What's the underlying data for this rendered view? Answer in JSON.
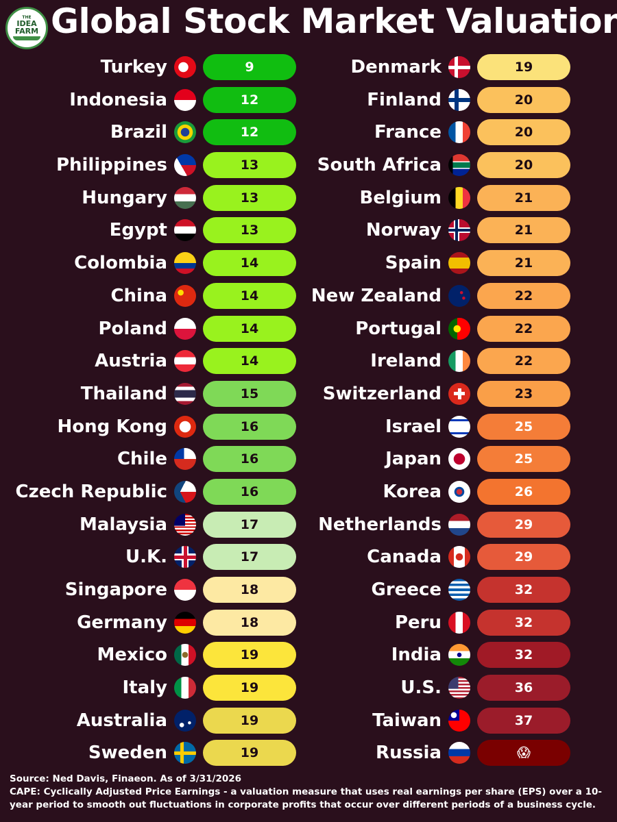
{
  "logo": {
    "line1": "THE",
    "line2": "IDEA",
    "line3": "FARM"
  },
  "title": "Global Stock Market Valuations",
  "chart_data": {
    "type": "table",
    "title": "Global Stock Market Valuations",
    "columns": [
      [
        {
          "country": "Turkey",
          "value": 9,
          "color": "#10be10",
          "flag": "turkey-flag-icon"
        },
        {
          "country": "Indonesia",
          "value": 12,
          "color": "#11bd11",
          "flag": "indonesia-flag-icon"
        },
        {
          "country": "Brazil",
          "value": 12,
          "color": "#11bd11",
          "flag": "brazil-flag-icon"
        },
        {
          "country": "Philippines",
          "value": 13,
          "color": "#99f21e",
          "flag": "philippines-flag-icon"
        },
        {
          "country": "Hungary",
          "value": 13,
          "color": "#99f21e",
          "flag": "hungary-flag-icon"
        },
        {
          "country": "Egypt",
          "value": 13,
          "color": "#99f21e",
          "flag": "egypt-flag-icon"
        },
        {
          "country": "Colombia",
          "value": 14,
          "color": "#99f21e",
          "flag": "colombia-flag-icon"
        },
        {
          "country": "China",
          "value": 14,
          "color": "#99f21e",
          "flag": "china-flag-icon"
        },
        {
          "country": "Poland",
          "value": 14,
          "color": "#99f21e",
          "flag": "poland-flag-icon"
        },
        {
          "country": "Austria",
          "value": 14,
          "color": "#99f21e",
          "flag": "austria-flag-icon"
        },
        {
          "country": "Thailand",
          "value": 15,
          "color": "#7fd957",
          "flag": "thailand-flag-icon"
        },
        {
          "country": "Hong Kong",
          "value": 16,
          "color": "#7fd957",
          "flag": "hong-kong-flag-icon"
        },
        {
          "country": "Chile",
          "value": 16,
          "color": "#7fd957",
          "flag": "chile-flag-icon"
        },
        {
          "country": "Czech Republic",
          "value": 16,
          "color": "#7fd957",
          "flag": "czech-republic-flag-icon"
        },
        {
          "country": "Malaysia",
          "value": 17,
          "color": "#c8ecb4",
          "flag": "malaysia-flag-icon"
        },
        {
          "country": "U.K.",
          "value": 17,
          "color": "#c8ecb4",
          "flag": "uk-flag-icon"
        },
        {
          "country": "Singapore",
          "value": 18,
          "color": "#fde9a3",
          "flag": "singapore-flag-icon"
        },
        {
          "country": "Germany",
          "value": 18,
          "color": "#fde9a3",
          "flag": "germany-flag-icon"
        },
        {
          "country": "Mexico",
          "value": 19,
          "color": "#fce53b",
          "flag": "mexico-flag-icon"
        },
        {
          "country": "Italy",
          "value": 19,
          "color": "#fce53b",
          "flag": "italy-flag-icon"
        },
        {
          "country": "Australia",
          "value": 19,
          "color": "#ebd84e",
          "flag": "australia-flag-icon"
        },
        {
          "country": "Sweden",
          "value": 19,
          "color": "#ebd84e",
          "flag": "sweden-flag-icon"
        }
      ],
      [
        {
          "country": "Denmark",
          "value": 19,
          "color": "#fbe27a",
          "flag": "denmark-flag-icon"
        },
        {
          "country": "Finland",
          "value": 20,
          "color": "#fbc15c",
          "flag": "finland-flag-icon"
        },
        {
          "country": "France",
          "value": 20,
          "color": "#fbc15c",
          "flag": "france-flag-icon"
        },
        {
          "country": "South Africa",
          "value": 20,
          "color": "#fbc15c",
          "flag": "south-africa-flag-icon"
        },
        {
          "country": "Belgium",
          "value": 21,
          "color": "#fbb256",
          "flag": "belgium-flag-icon"
        },
        {
          "country": "Norway",
          "value": 21,
          "color": "#fbb256",
          "flag": "norway-flag-icon"
        },
        {
          "country": "Spain",
          "value": 21,
          "color": "#fbb256",
          "flag": "spain-flag-icon"
        },
        {
          "country": "New Zealand",
          "value": 22,
          "color": "#fba64e",
          "flag": "new-zealand-flag-icon"
        },
        {
          "country": "Portugal",
          "value": 22,
          "color": "#fba64e",
          "flag": "portugal-flag-icon"
        },
        {
          "country": "Ireland",
          "value": 22,
          "color": "#fba64e",
          "flag": "ireland-flag-icon"
        },
        {
          "country": "Switzerland",
          "value": 23,
          "color": "#fa9f48",
          "flag": "switzerland-flag-icon"
        },
        {
          "country": "Israel",
          "value": 25,
          "color": "#f47d38",
          "flag": "israel-flag-icon"
        },
        {
          "country": "Japan",
          "value": 25,
          "color": "#f47d38",
          "flag": "japan-flag-icon"
        },
        {
          "country": "Korea",
          "value": 26,
          "color": "#f3742f",
          "flag": "korea-flag-icon"
        },
        {
          "country": "Netherlands",
          "value": 29,
          "color": "#e65a3a",
          "flag": "netherlands-flag-icon"
        },
        {
          "country": "Canada",
          "value": 29,
          "color": "#e65a3a",
          "flag": "canada-flag-icon"
        },
        {
          "country": "Greece",
          "value": 32,
          "color": "#c5332e",
          "flag": "greece-flag-icon"
        },
        {
          "country": "Peru",
          "value": 32,
          "color": "#c5332e",
          "flag": "peru-flag-icon"
        },
        {
          "country": "India",
          "value": 32,
          "color": "#a01a26",
          "flag": "india-flag-icon"
        },
        {
          "country": "U.S.",
          "value": 36,
          "color": "#9b1c2a",
          "flag": "us-flag-icon"
        },
        {
          "country": "Taiwan",
          "value": 37,
          "color": "#9b1c2a",
          "flag": "taiwan-flag-icon"
        },
        {
          "country": "Russia",
          "value": "😱",
          "color": "#7a0000",
          "flag": "russia-flag-icon"
        }
      ]
    ]
  },
  "footer": {
    "source": "Source: Ned Davis, Finaeon. As of 3/31/2026",
    "note": "CAPE: Cyclically Adjusted Price Earnings - a valuation measure that uses real earnings per share (EPS) over a 10-year period to smooth out fluctuations in corporate profits that occur over different periods of a business cycle."
  }
}
